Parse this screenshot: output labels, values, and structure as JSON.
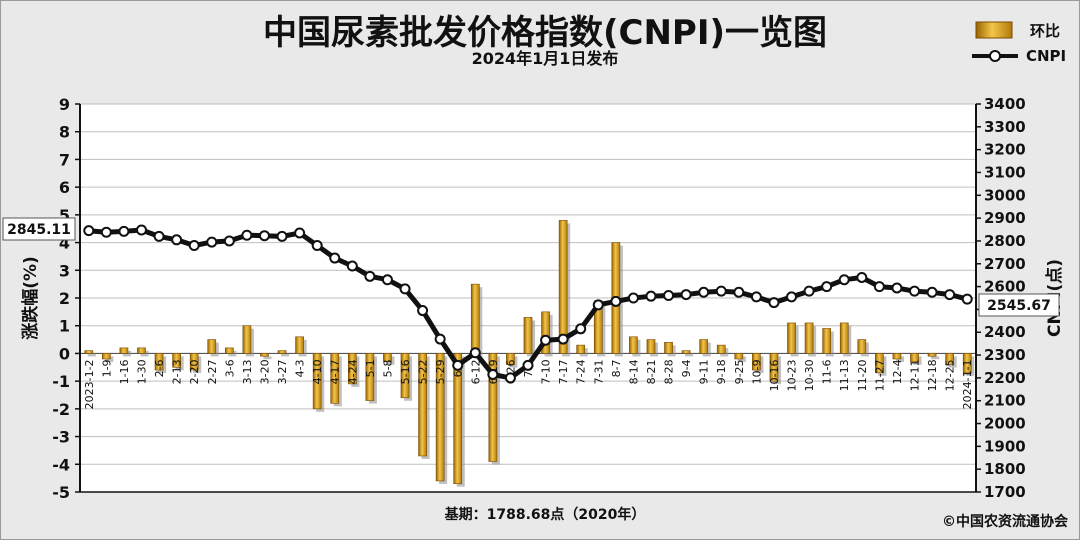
{
  "chart_data": {
    "type": "bar+line",
    "title": "中国尿素批发价格指数(CNPI)一览图",
    "subtitle": "2024年1月1日发布",
    "ylabel_left": "涨跌幅(%)",
    "ylabel_right": "CNPI(点)",
    "ylim_left": [
      -5,
      9
    ],
    "ylim_right": [
      1700,
      3400
    ],
    "yticks_left": [
      "9",
      "8",
      "7",
      "6",
      "5",
      "4",
      "3",
      "2",
      "1",
      "0",
      "-1",
      "-2",
      "-3",
      "-4",
      "-5"
    ],
    "yticks_right": [
      "3400",
      "3300",
      "3200",
      "3100",
      "3000",
      "2900",
      "2800",
      "2700",
      "2600",
      "2500",
      "2400",
      "2300",
      "2200",
      "2100",
      "2000",
      "1900",
      "1800",
      "1700"
    ],
    "legend": {
      "placement": "top-right",
      "bar": "环比",
      "line": "CNPI"
    },
    "categories": [
      "2023-1-2",
      "1-9",
      "1-16",
      "1-30",
      "2-6",
      "2-13",
      "2-20",
      "2-27",
      "3-6",
      "3-13",
      "3-20",
      "3-27",
      "4-3",
      "4-10",
      "4-17",
      "4-24",
      "5-1",
      "5-8",
      "5-16",
      "5-22",
      "5-29",
      "6-5",
      "6-12",
      "6-19",
      "6-26",
      "7-3",
      "7-10",
      "7-17",
      "7-24",
      "7-31",
      "8-7",
      "8-14",
      "8-21",
      "8-28",
      "9-4",
      "9-11",
      "9-18",
      "9-25",
      "10-9",
      "10-16",
      "10-23",
      "10-30",
      "11-6",
      "11-13",
      "11-20",
      "11-27",
      "12-4",
      "12-11",
      "12-18",
      "12-25",
      "2024-1-1"
    ],
    "x_labels": [
      "2023-1-2",
      "1-9",
      "1-16",
      "1-30",
      "2-6",
      "2-13",
      "2-20",
      "2-27",
      "3-6",
      "3-13",
      "3-20",
      "3-27",
      "4-3",
      "4-10",
      "4-17",
      "4-24",
      "5-1",
      "5-8",
      "5-16",
      "5-22",
      "5-29",
      "6-5",
      "6-12",
      "6-19",
      "6-26",
      "7-3",
      "7-10",
      "7-17",
      "7-24",
      "7-31",
      "8-7",
      "8-14",
      "8-21",
      "8-28",
      "9-4",
      "9-11",
      "9-18",
      "9-25",
      "10-9",
      "10-16",
      "10-23",
      "10-30",
      "11-6",
      "11-13",
      "11-20",
      "11-27",
      "12-4",
      "12-11",
      "12-18",
      "12-25",
      "2024-1-1"
    ],
    "series": [
      {
        "name": "环比",
        "type": "bar",
        "values": [
          0.1,
          -0.2,
          0.2,
          0.2,
          -0.6,
          -0.5,
          -0.6,
          0.5,
          0.2,
          1.0,
          -0.1,
          0.1,
          0.6,
          -2.0,
          -1.8,
          -1.1,
          -1.7,
          -0.3,
          -1.6,
          -3.7,
          -4.6,
          -4.7,
          2.5,
          -3.9,
          -0.4,
          1.3,
          1.5,
          4.8,
          0.3,
          1.9,
          4.0,
          0.6,
          0.5,
          0.4,
          0.1,
          0.5,
          0.3,
          -0.2,
          -0.6,
          -1.0,
          1.1,
          1.1,
          0.9,
          1.1,
          0.5,
          -0.7,
          -0.2,
          -0.3,
          -0.1,
          -0.4,
          -0.7
        ]
      },
      {
        "name": "CNPI",
        "type": "line",
        "values": [
          2845,
          2838,
          2842,
          2848,
          2820,
          2805,
          2780,
          2795,
          2800,
          2825,
          2823,
          2820,
          2835,
          2780,
          2725,
          2690,
          2645,
          2630,
          2590,
          2495,
          2370,
          2255,
          2310,
          2215,
          2200,
          2255,
          2365,
          2370,
          2415,
          2520,
          2535,
          2550,
          2558,
          2561,
          2565,
          2575,
          2580,
          2575,
          2555,
          2530,
          2555,
          2580,
          2600,
          2630,
          2640,
          2600,
          2594,
          2580,
          2575,
          2565,
          2545
        ]
      }
    ],
    "callouts": {
      "cnpi_start": "2845.11",
      "cnpi_end": "2545.67"
    },
    "grid": true
  },
  "footer": {
    "base": "基期：1788.68点（2020年）",
    "copyright": "©中国农资流通协会"
  },
  "colors": {
    "bar": "#d9a21b",
    "bar_edge": "#8a5a00",
    "line": "#111111",
    "background": "#e9e9e9",
    "plot_bg": "#ffffff"
  }
}
